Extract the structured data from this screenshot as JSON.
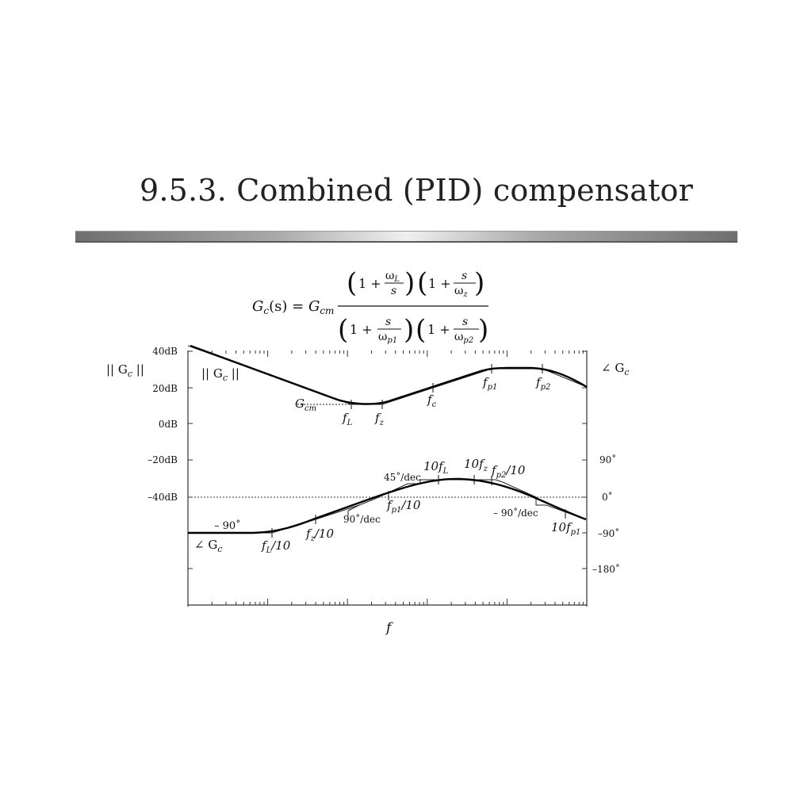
{
  "slide": {
    "title": "9.5.3.  Combined (PID) compensator"
  },
  "formula": {
    "lhs_G": "G",
    "lhs_sub": "c",
    "lhs_arg": "(s) = ",
    "gain_G": "G",
    "gain_sub": "cm",
    "one_plus": "1 +",
    "omega": "ω",
    "sub_L": "L",
    "sub_z": "z",
    "sub_p1": "p1",
    "sub_p2": "p2",
    "s": "s"
  },
  "axes": {
    "left_ticks": [
      "40dB",
      "20dB",
      "0dB",
      "–20dB",
      "–40dB"
    ],
    "right_ticks": [
      "90˚",
      "0˚",
      "–90˚",
      "–180˚"
    ],
    "x_label": "f",
    "mag_axis_label": "|| G",
    "mag_axis_sub": "c",
    "mag_axis_close": " ||",
    "phase_axis_label": "∠ G",
    "phase_axis_sub": "c"
  },
  "annotations": {
    "mag_curve_label": "|| G",
    "mag_curve_sub": "c",
    "mag_curve_close": " ||",
    "Gcm": "G",
    "Gcm_sub": "cm",
    "fL": "f",
    "fL_sub": "L",
    "fz": "f",
    "fz_sub": "z",
    "fc": "f",
    "fc_sub": "c",
    "fp1": "f",
    "fp1_sub": "p1",
    "fp2": "f",
    "fp2_sub": "p2",
    "phase_curve_label": "∠ G",
    "phase_curve_sub": "c",
    "minus90": "– 90˚",
    "fL10_pre": "f",
    "fL10_sub": "L",
    "fL10_post": "/10",
    "fz10_pre": "f",
    "fz10_sub": "z",
    "fz10_post": "/10",
    "slope_90": "90˚/dec",
    "slope_45": "45˚/dec",
    "fp110_pre": "f",
    "fp110_sub": "p1",
    "fp110_post": "/10",
    "tenfL_pre": "10f",
    "tenfL_sub": "L",
    "tenfz_pre": "10f",
    "tenfz_sub": "z",
    "fp210_pre": "f",
    "fp210_sub": "p2",
    "fp210_post": "/10",
    "slope_m90": "– 90˚/dec",
    "tenfp1_pre": "10f",
    "tenfp1_sub": "p1"
  },
  "colors": {
    "curve": "#000000",
    "asymptote": "#222222",
    "axis": "#333333",
    "title": "#222222"
  }
}
